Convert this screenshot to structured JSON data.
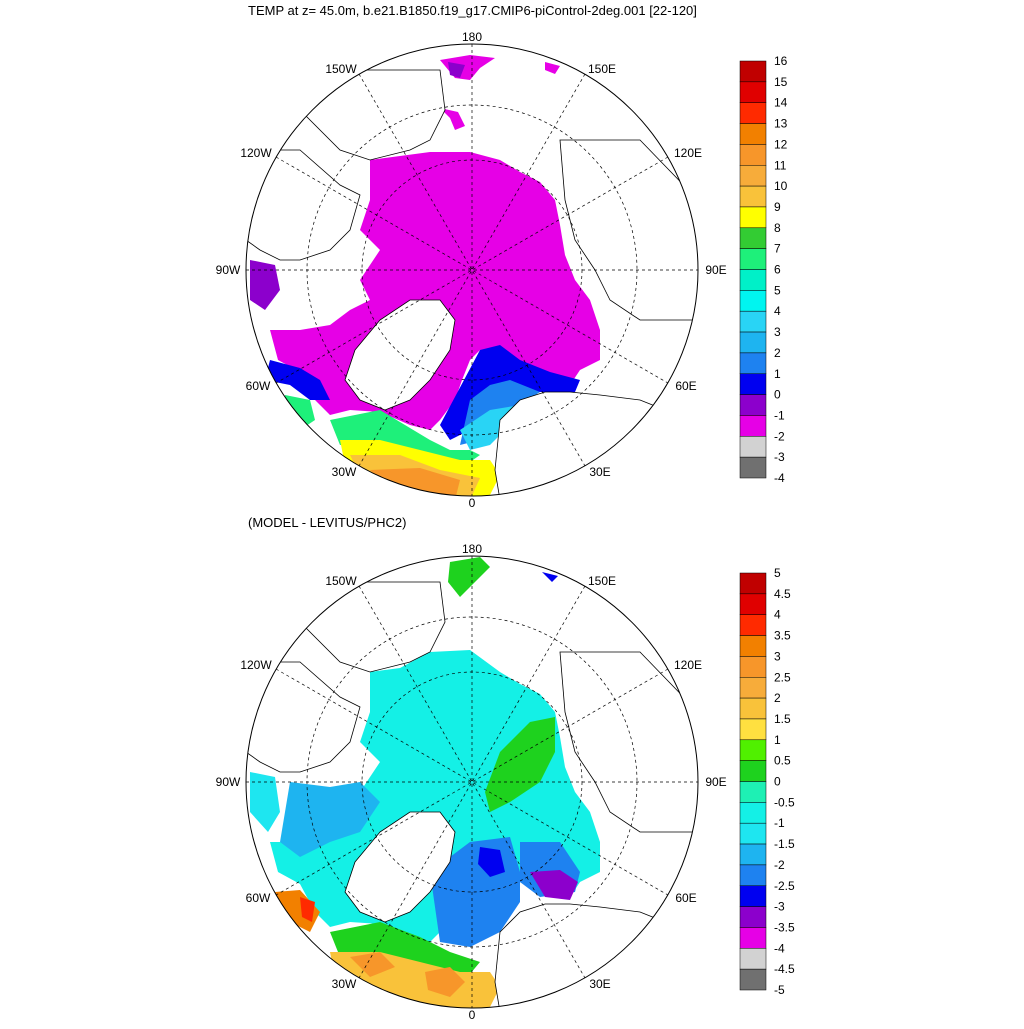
{
  "top_panel": {
    "title": "TEMP at z=  45.0m, b.e21.B1850.f19_g17.CMIP6-piControl-2deg.001 [22-120]",
    "lon_labels": {
      "top": "180",
      "bottom": "0",
      "left": "90W",
      "right": "90E",
      "ul1": "150W",
      "ul2": "120W",
      "ur1": "150E",
      "ur2": "120E",
      "ll1": "60W",
      "ll2": "30W",
      "lr1": "60E",
      "lr2": "30E"
    },
    "colorbar": {
      "labels": [
        "16",
        "15",
        "14",
        "13",
        "12",
        "11",
        "10",
        "9",
        "8",
        "7",
        "6",
        "5",
        "4",
        "3",
        "2",
        "1",
        "0",
        "-1",
        "-2",
        "-3",
        "-4"
      ],
      "colors": [
        "#c00000",
        "#e00000",
        "#ff2a00",
        "#f28000",
        "#f7962a",
        "#f7ac3a",
        "#f9c23a",
        "#ffff00",
        "#33cc33",
        "#1ef07a",
        "#00f0c8",
        "#00f5f0",
        "#29d4f5",
        "#1eb4f0",
        "#1e82f0",
        "#0000f0",
        "#8c00cc",
        "#e600e6",
        "#d2d2d2",
        "#707070"
      ]
    }
  },
  "bottom_panel": {
    "title": "(MODEL - LEVITUS/PHC2)",
    "lon_labels": {
      "top": "180",
      "bottom": "0",
      "left": "90W",
      "right": "90E",
      "ul1": "150W",
      "ul2": "120W",
      "ur1": "150E",
      "ur2": "120E",
      "ll1": "60W",
      "ll2": "30W",
      "lr1": "60E",
      "lr2": "30E"
    },
    "colorbar": {
      "labels": [
        "5",
        "4.5",
        "4",
        "3.5",
        "3",
        "2.5",
        "2",
        "1.5",
        "1",
        "0.5",
        "0",
        "-0.5",
        "-1",
        "-1.5",
        "-2",
        "-2.5",
        "-3",
        "-3.5",
        "-4",
        "-4.5",
        "-5"
      ],
      "colors": [
        "#c00000",
        "#e00000",
        "#ff2a00",
        "#f28000",
        "#f7962a",
        "#f7ac3a",
        "#f9c23a",
        "#ffe040",
        "#50f000",
        "#1ed21e",
        "#1ef0b4",
        "#14f0e6",
        "#1ee6f0",
        "#1eb4f0",
        "#1e82f0",
        "#0000f0",
        "#8c00cc",
        "#e600e6",
        "#d2d2d2",
        "#707070"
      ]
    }
  }
}
